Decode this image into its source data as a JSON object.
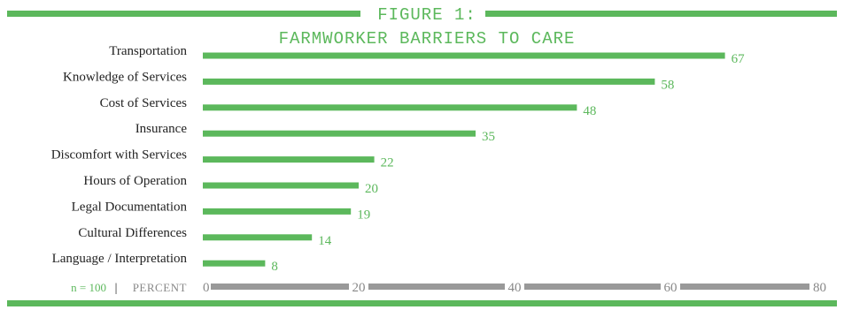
{
  "title_line1": "FIGURE 1:",
  "title_line2": "FARMWORKER BARRIERS TO CARE",
  "colors": {
    "bar": "#5cb85c",
    "label": "#5cb85c",
    "axis": "#999999",
    "text": "#222222"
  },
  "footer": {
    "sample": "n = 100",
    "separator": "|",
    "unit": "PERCENT"
  },
  "chart_data": {
    "type": "bar",
    "orientation": "horizontal",
    "categories": [
      "Transportation",
      "Knowledge of Services",
      "Cost of Services",
      "Insurance",
      "Discomfort with Services",
      "Hours of Operation",
      "Legal Documentation",
      "Cultural Differences",
      "Language / Interpretation"
    ],
    "values": [
      67,
      58,
      48,
      35,
      22,
      20,
      19,
      14,
      8
    ],
    "title": "FIGURE 1: FARMWORKER BARRIERS TO CARE",
    "xlabel": "PERCENT",
    "xlim": [
      0,
      80
    ],
    "xticks": [
      0,
      20,
      40,
      60,
      80
    ],
    "grid": false,
    "legend": "none"
  }
}
